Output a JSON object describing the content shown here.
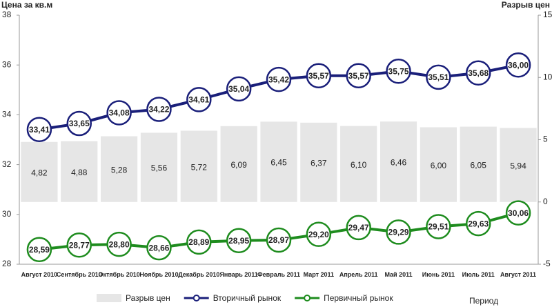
{
  "chart_data": {
    "type": "combo",
    "y_label": "Цена за кв.м",
    "y2_label": "Разрыв цен",
    "x_label": "Период",
    "categories": [
      "Август 2010",
      "Сентябрь 2010",
      "Октябрь 2010",
      "Ноябрь 2010",
      "Декабрь 2010",
      "Январь 2011",
      "Февраль 2011",
      "Март 2011",
      "Апрель 2011",
      "Май 2011",
      "Июнь 2011",
      "Июль 2011",
      "Август 2011"
    ],
    "ylim": [
      28,
      38
    ],
    "yticks": [
      28,
      30,
      32,
      34,
      36,
      38
    ],
    "y2lim": [
      -5,
      15
    ],
    "y2ticks": [
      -5,
      0,
      5,
      10,
      15
    ],
    "series": [
      {
        "name": "Разрыв цен",
        "type": "bar",
        "axis": "y2",
        "color": "#e6e6e6",
        "values": [
          4.82,
          4.88,
          5.28,
          5.56,
          5.72,
          6.09,
          6.45,
          6.37,
          6.1,
          6.46,
          6.0,
          6.05,
          5.94
        ],
        "value_labels": [
          "4,82",
          "4,88",
          "5,28",
          "5,56",
          "5,72",
          "6,09",
          "6,45",
          "6,37",
          "6,10",
          "6,46",
          "6,00",
          "6,05",
          "5,94"
        ]
      },
      {
        "name": "Вторичный рынок",
        "type": "line",
        "color": "#1a1f7a",
        "values": [
          33.41,
          33.65,
          34.08,
          34.22,
          34.61,
          35.04,
          35.42,
          35.57,
          35.57,
          35.75,
          35.51,
          35.68,
          36.0
        ],
        "value_labels": [
          "33,41",
          "33,65",
          "34,08",
          "34,22",
          "34,61",
          "35,04",
          "35,42",
          "35,57",
          "35,57",
          "35,75",
          "35,51",
          "35,68",
          "36,00"
        ]
      },
      {
        "name": "Первичный рынок",
        "type": "line",
        "color": "#1e8c1e",
        "values": [
          28.59,
          28.77,
          28.8,
          28.66,
          28.89,
          28.95,
          28.97,
          29.2,
          29.47,
          29.29,
          29.51,
          29.63,
          30.06
        ],
        "value_labels": [
          "28,59",
          "28,77",
          "28,80",
          "28,66",
          "28,89",
          "28,95",
          "28,97",
          "29,20",
          "29,47",
          "29,29",
          "29,51",
          "29,63",
          "30,06"
        ]
      }
    ]
  }
}
